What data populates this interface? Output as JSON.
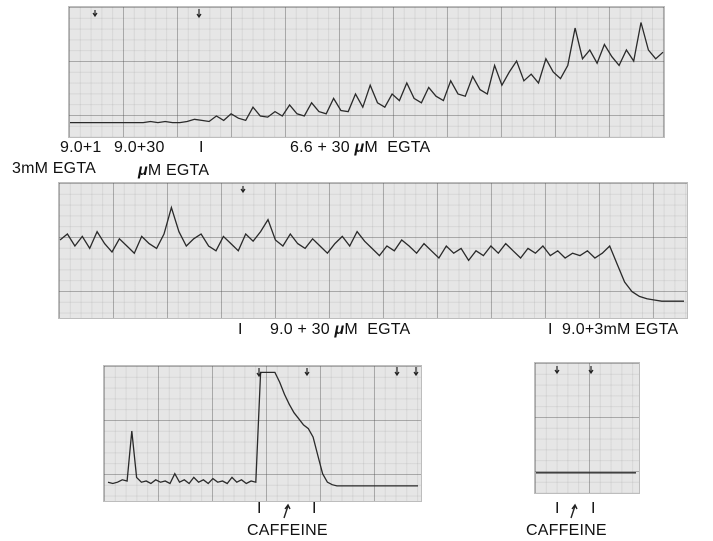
{
  "chart_data": [
    {
      "type": "line",
      "labels": {
        "l1a": "9.0+1",
        "l1b": "3mM EGTA",
        "l2a": "9.0+30",
        "l2b_mu": "μ",
        "l2b_rest": "M EGTA",
        "l3_pre": "6.6 + 30",
        "l3_mu": "μ",
        "l3_post": "M  EGTA"
      },
      "marker_ticks": [
        "I"
      ],
      "grid": true,
      "series": [
        {
          "values": [
            0.04,
            0.04,
            0.04,
            0.04,
            0.04,
            0.04,
            0.04,
            0.04,
            0.04,
            0.04,
            0.04,
            0.05,
            0.04,
            0.05,
            0.04,
            0.04,
            0.05,
            0.07,
            0.06,
            0.05,
            0.1,
            0.06,
            0.12,
            0.08,
            0.06,
            0.18,
            0.1,
            0.09,
            0.14,
            0.1,
            0.2,
            0.12,
            0.1,
            0.22,
            0.14,
            0.12,
            0.26,
            0.15,
            0.14,
            0.3,
            0.18,
            0.38,
            0.22,
            0.18,
            0.3,
            0.24,
            0.4,
            0.26,
            0.22,
            0.36,
            0.28,
            0.24,
            0.42,
            0.3,
            0.28,
            0.46,
            0.34,
            0.3,
            0.56,
            0.38,
            0.5,
            0.6,
            0.42,
            0.48,
            0.4,
            0.62,
            0.5,
            0.44,
            0.56,
            0.9,
            0.62,
            0.7,
            0.58,
            0.75,
            0.64,
            0.56,
            0.7,
            0.6,
            0.95,
            0.7,
            0.62,
            0.68
          ]
        }
      ]
    },
    {
      "type": "line",
      "labels": {
        "l4_pre": "9.0 + 30",
        "l4_mu": "μ",
        "l4_post": "M  EGTA",
        "l5": "9.0+3mM EGTA"
      },
      "marker_ticks": [
        "I",
        "I"
      ],
      "grid": true,
      "series": [
        {
          "values": [
            0.55,
            0.6,
            0.5,
            0.58,
            0.48,
            0.62,
            0.52,
            0.45,
            0.56,
            0.5,
            0.44,
            0.58,
            0.52,
            0.48,
            0.6,
            0.82,
            0.62,
            0.5,
            0.56,
            0.6,
            0.5,
            0.46,
            0.58,
            0.52,
            0.46,
            0.6,
            0.54,
            0.62,
            0.72,
            0.55,
            0.5,
            0.6,
            0.52,
            0.48,
            0.56,
            0.5,
            0.44,
            0.52,
            0.58,
            0.5,
            0.62,
            0.54,
            0.48,
            0.42,
            0.5,
            0.46,
            0.55,
            0.5,
            0.44,
            0.52,
            0.46,
            0.4,
            0.5,
            0.44,
            0.48,
            0.38,
            0.46,
            0.42,
            0.5,
            0.44,
            0.52,
            0.46,
            0.4,
            0.48,
            0.44,
            0.5,
            0.42,
            0.46,
            0.4,
            0.44,
            0.42,
            0.46,
            0.4,
            0.44,
            0.5,
            0.35,
            0.2,
            0.12,
            0.08,
            0.06,
            0.05,
            0.04,
            0.04,
            0.04,
            0.04
          ]
        }
      ]
    },
    {
      "type": "line",
      "labels": {
        "caffeine": "CAFFEINE"
      },
      "marker_ticks": [
        "I",
        "I"
      ],
      "grid": true,
      "series": [
        {
          "values": [
            0.08,
            0.07,
            0.08,
            0.1,
            0.09,
            0.5,
            0.12,
            0.08,
            0.09,
            0.07,
            0.1,
            0.08,
            0.09,
            0.07,
            0.15,
            0.08,
            0.1,
            0.07,
            0.12,
            0.08,
            0.1,
            0.07,
            0.11,
            0.08,
            0.09,
            0.07,
            0.12,
            0.08,
            0.1,
            0.07,
            0.09,
            0.08,
            0.98,
            0.98,
            0.98,
            0.98,
            0.9,
            0.8,
            0.72,
            0.65,
            0.6,
            0.55,
            0.52,
            0.45,
            0.3,
            0.15,
            0.08,
            0.06,
            0.05,
            0.05,
            0.05,
            0.05,
            0.05,
            0.05,
            0.05,
            0.05,
            0.05,
            0.05,
            0.05,
            0.05,
            0.05,
            0.05,
            0.05,
            0.05,
            0.05,
            0.05
          ]
        }
      ]
    },
    {
      "type": "line",
      "labels": {
        "caffeine": "CAFFEINE"
      },
      "marker_ticks": [
        "I",
        "I"
      ],
      "grid": true,
      "series": [
        {
          "values": [
            0.22,
            0.22,
            0.22,
            0.22,
            0.22,
            0.22,
            0.22,
            0.22,
            0.22,
            0.22,
            0.22,
            0.22,
            0.22,
            0.22,
            0.22,
            0.22,
            0.22,
            0.22,
            0.22,
            0.22
          ]
        }
      ]
    }
  ]
}
